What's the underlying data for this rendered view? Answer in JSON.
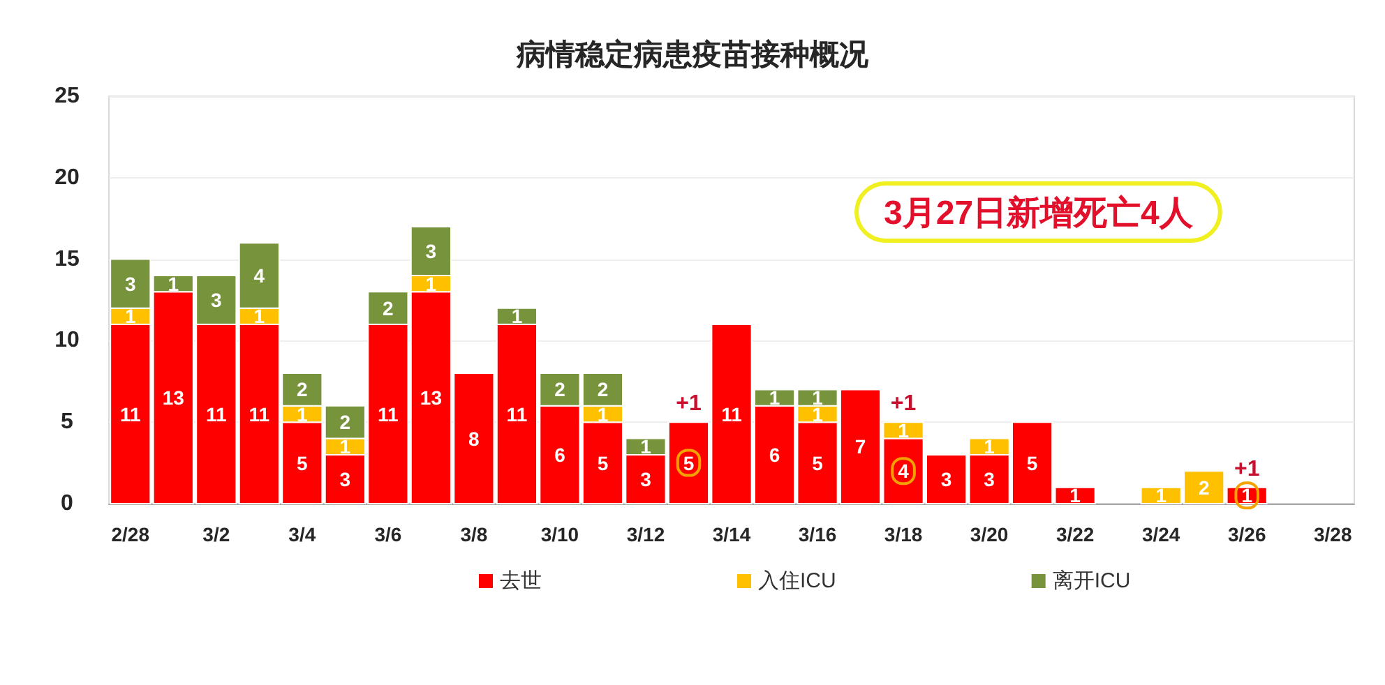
{
  "chart_data": {
    "type": "bar",
    "title": "病情稳定病患疫苗接种概况",
    "x": [
      "--02-28",
      "--03-01",
      "--03-02",
      "--03-03",
      "--03-04",
      "--03-05",
      "--03-06",
      "--03-07",
      "--03-08",
      "--03-09",
      "--03-10",
      "--03-11",
      "--03-12",
      "--03-13",
      "--03-14",
      "--03-15",
      "--03-16",
      "--03-17",
      "--03-18",
      "--03-19",
      "--03-20",
      "--03-21",
      "--03-22",
      "--03-23",
      "--03-24",
      "--03-25",
      "--03-26"
    ],
    "xlim": [
      "--02-27T12:00",
      "--03-28T12:00"
    ],
    "xticks": [
      {
        "value": "--02-28",
        "label": "2/28"
      },
      {
        "value": "--03-02",
        "label": "3/2"
      },
      {
        "value": "--03-04",
        "label": "3/4"
      },
      {
        "value": "--03-06",
        "label": "3/6"
      },
      {
        "value": "--03-08",
        "label": "3/8"
      },
      {
        "value": "--03-10",
        "label": "3/10"
      },
      {
        "value": "--03-12",
        "label": "3/12"
      },
      {
        "value": "--03-14",
        "label": "3/14"
      },
      {
        "value": "--03-16",
        "label": "3/16"
      },
      {
        "value": "--03-18",
        "label": "3/18"
      },
      {
        "value": "--03-20",
        "label": "3/20"
      },
      {
        "value": "--03-22",
        "label": "3/22"
      },
      {
        "value": "--03-24",
        "label": "3/24"
      },
      {
        "value": "--03-26",
        "label": "3/26"
      },
      {
        "value": "--03-28",
        "label": "3/28"
      }
    ],
    "ylim": [
      0,
      25
    ],
    "yticks": [
      0,
      5,
      10,
      15,
      20,
      25
    ],
    "stacked": true,
    "series": [
      {
        "name": "去世",
        "color": "#ff0000",
        "values": [
          11,
          13,
          11,
          11,
          5,
          3,
          11,
          13,
          8,
          11,
          6,
          5,
          3,
          5,
          11,
          6,
          5,
          7,
          4,
          3,
          3,
          5,
          1,
          null,
          null,
          null,
          1
        ]
      },
      {
        "name": "入住ICU",
        "color": "#ffc000",
        "values": [
          1,
          null,
          null,
          1,
          1,
          1,
          null,
          1,
          null,
          null,
          null,
          1,
          null,
          null,
          null,
          null,
          1,
          null,
          1,
          null,
          1,
          null,
          null,
          null,
          1,
          2,
          null
        ]
      },
      {
        "name": "离开ICU",
        "color": "#77933c",
        "values": [
          3,
          1,
          3,
          4,
          2,
          2,
          2,
          3,
          null,
          1,
          2,
          2,
          1,
          null,
          null,
          1,
          1,
          null,
          null,
          null,
          null,
          null,
          null,
          null,
          null,
          null,
          null
        ]
      }
    ],
    "data_labels": true,
    "grid": "y",
    "legend": "bottom",
    "annotations": [
      "3月27日新增死亡4人",
      {
        "text": "+1",
        "x": "--03-13",
        "y": 5
      },
      {
        "text": "+1",
        "x": "--03-18",
        "y": 5
      },
      {
        "text": "+1",
        "x": "--03-26",
        "y": 1
      }
    ]
  }
}
